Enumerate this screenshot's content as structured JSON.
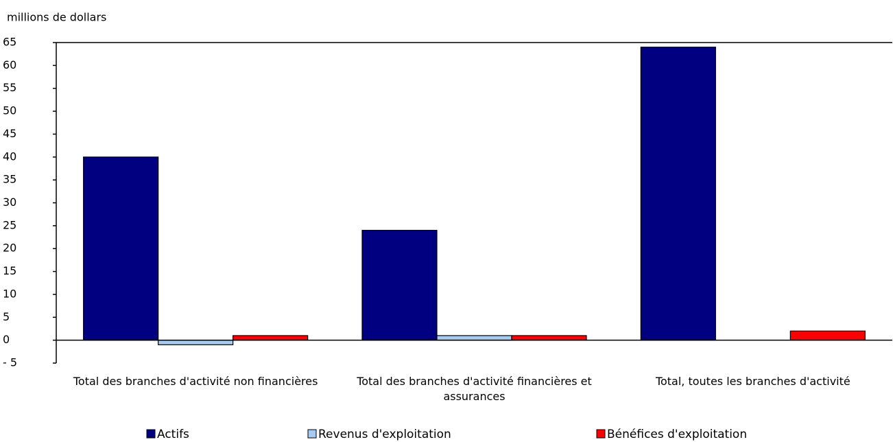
{
  "chart_data": {
    "type": "bar",
    "y_label": "millions de dollars",
    "categories": [
      "Total des branches d'activité non financières",
      "Total des branches d'activité financières et assurances",
      "Total, toutes les branches d'activité"
    ],
    "series": [
      {
        "name": "Actifs",
        "color": "#000080",
        "values": [
          40,
          24,
          64
        ]
      },
      {
        "name": "Revenus d'exploitation",
        "color": "#a6caf0",
        "values": [
          -1,
          1,
          0
        ]
      },
      {
        "name": "Bénéfices d'exploitation",
        "color": "#ff0000",
        "values": [
          1,
          1,
          2
        ]
      }
    ],
    "ylim": [
      -5,
      65
    ],
    "yticks": [
      {
        "value": -5,
        "label": "- 5"
      },
      0,
      5,
      10,
      15,
      20,
      25,
      30,
      35,
      40,
      45,
      50,
      55,
      60,
      65
    ],
    "grid": false,
    "legend": "bottom"
  }
}
